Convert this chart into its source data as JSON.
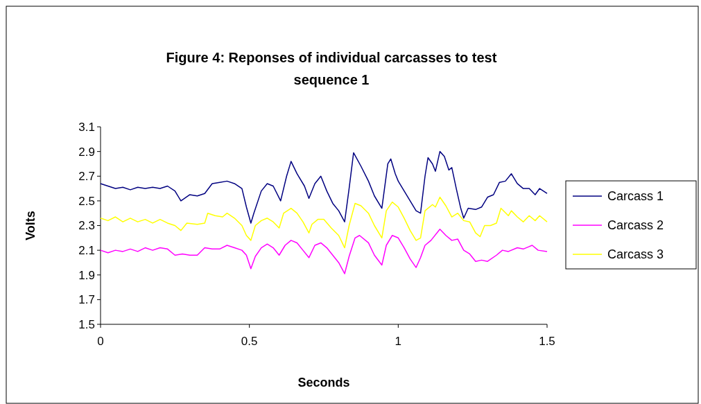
{
  "chart_data": {
    "type": "line",
    "title": "Figure 4: Reponses of individual carcasses to test sequence 1",
    "xlabel": "Seconds",
    "ylabel": "Volts",
    "xlim": [
      0,
      1.5
    ],
    "xticks": [
      0,
      0.5,
      1,
      1.5
    ],
    "ylim": [
      1.5,
      3.1
    ],
    "yticks": [
      1.5,
      1.7,
      1.9,
      2.1,
      2.3,
      2.5,
      2.7,
      2.9,
      3.1
    ],
    "grid": false,
    "legend": "right",
    "marker": "none",
    "line_style": "solid",
    "series": [
      {
        "name": "Carcass 1",
        "color": "#000080",
        "x": [
          0,
          0.025,
          0.05,
          0.075,
          0.1,
          0.125,
          0.15,
          0.175,
          0.2,
          0.225,
          0.25,
          0.27,
          0.3,
          0.325,
          0.35,
          0.375,
          0.4,
          0.425,
          0.45,
          0.475,
          0.49,
          0.505,
          0.515,
          0.54,
          0.56,
          0.58,
          0.605,
          0.625,
          0.64,
          0.66,
          0.685,
          0.7,
          0.72,
          0.74,
          0.76,
          0.78,
          0.8,
          0.82,
          0.835,
          0.85,
          0.875,
          0.9,
          0.92,
          0.945,
          0.965,
          0.975,
          0.99,
          1.0,
          1.02,
          1.04,
          1.06,
          1.075,
          1.09,
          1.1,
          1.115,
          1.125,
          1.14,
          1.155,
          1.17,
          1.18,
          1.195,
          1.21,
          1.22,
          1.235,
          1.26,
          1.28,
          1.3,
          1.32,
          1.34,
          1.36,
          1.38,
          1.4,
          1.42,
          1.44,
          1.46,
          1.475,
          1.5
        ],
        "values": [
          2.64,
          2.62,
          2.6,
          2.61,
          2.59,
          2.61,
          2.6,
          2.61,
          2.6,
          2.62,
          2.58,
          2.5,
          2.55,
          2.54,
          2.56,
          2.64,
          2.65,
          2.66,
          2.64,
          2.6,
          2.45,
          2.32,
          2.4,
          2.58,
          2.64,
          2.62,
          2.5,
          2.7,
          2.82,
          2.72,
          2.62,
          2.52,
          2.64,
          2.7,
          2.58,
          2.48,
          2.42,
          2.33,
          2.6,
          2.89,
          2.78,
          2.66,
          2.54,
          2.44,
          2.8,
          2.84,
          2.72,
          2.66,
          2.58,
          2.5,
          2.42,
          2.4,
          2.7,
          2.85,
          2.8,
          2.74,
          2.9,
          2.86,
          2.75,
          2.77,
          2.6,
          2.44,
          2.36,
          2.44,
          2.43,
          2.45,
          2.53,
          2.55,
          2.65,
          2.66,
          2.72,
          2.64,
          2.6,
          2.6,
          2.55,
          2.6,
          2.56
        ]
      },
      {
        "name": "Carcass 2",
        "color": "#ff00ff",
        "x": [
          0,
          0.025,
          0.05,
          0.075,
          0.1,
          0.125,
          0.15,
          0.175,
          0.2,
          0.225,
          0.25,
          0.275,
          0.3,
          0.325,
          0.35,
          0.375,
          0.4,
          0.425,
          0.45,
          0.475,
          0.49,
          0.505,
          0.52,
          0.54,
          0.56,
          0.58,
          0.6,
          0.62,
          0.64,
          0.66,
          0.68,
          0.7,
          0.72,
          0.74,
          0.76,
          0.78,
          0.8,
          0.82,
          0.835,
          0.855,
          0.87,
          0.9,
          0.92,
          0.945,
          0.96,
          0.98,
          1.0,
          1.02,
          1.04,
          1.06,
          1.075,
          1.09,
          1.11,
          1.14,
          1.16,
          1.18,
          1.2,
          1.22,
          1.24,
          1.26,
          1.28,
          1.3,
          1.33,
          1.35,
          1.37,
          1.4,
          1.42,
          1.45,
          1.47,
          1.5
        ],
        "values": [
          2.1,
          2.08,
          2.1,
          2.09,
          2.11,
          2.09,
          2.12,
          2.1,
          2.12,
          2.11,
          2.06,
          2.07,
          2.06,
          2.06,
          2.12,
          2.11,
          2.11,
          2.14,
          2.12,
          2.1,
          2.06,
          1.95,
          2.05,
          2.12,
          2.15,
          2.12,
          2.06,
          2.14,
          2.18,
          2.16,
          2.1,
          2.04,
          2.14,
          2.16,
          2.12,
          2.06,
          2.0,
          1.91,
          2.05,
          2.2,
          2.22,
          2.16,
          2.06,
          1.98,
          2.14,
          2.22,
          2.2,
          2.12,
          2.03,
          1.96,
          2.04,
          2.14,
          2.18,
          2.27,
          2.22,
          2.18,
          2.19,
          2.1,
          2.07,
          2.01,
          2.02,
          2.01,
          2.06,
          2.1,
          2.09,
          2.12,
          2.11,
          2.14,
          2.1,
          2.09
        ]
      },
      {
        "name": "Carcass 3",
        "color": "#ffff00",
        "x": [
          0,
          0.025,
          0.05,
          0.075,
          0.1,
          0.125,
          0.15,
          0.175,
          0.2,
          0.225,
          0.25,
          0.27,
          0.29,
          0.325,
          0.35,
          0.36,
          0.385,
          0.41,
          0.425,
          0.45,
          0.475,
          0.49,
          0.505,
          0.52,
          0.54,
          0.56,
          0.58,
          0.6,
          0.615,
          0.64,
          0.66,
          0.68,
          0.7,
          0.71,
          0.73,
          0.75,
          0.775,
          0.8,
          0.82,
          0.835,
          0.855,
          0.875,
          0.9,
          0.92,
          0.945,
          0.96,
          0.98,
          1.0,
          1.02,
          1.04,
          1.06,
          1.075,
          1.09,
          1.115,
          1.125,
          1.14,
          1.16,
          1.18,
          1.2,
          1.22,
          1.24,
          1.26,
          1.275,
          1.29,
          1.31,
          1.33,
          1.345,
          1.37,
          1.38,
          1.4,
          1.42,
          1.44,
          1.46,
          1.475,
          1.5
        ],
        "values": [
          2.36,
          2.34,
          2.37,
          2.33,
          2.36,
          2.33,
          2.35,
          2.32,
          2.35,
          2.32,
          2.3,
          2.26,
          2.32,
          2.31,
          2.32,
          2.4,
          2.38,
          2.37,
          2.4,
          2.36,
          2.3,
          2.22,
          2.18,
          2.3,
          2.34,
          2.36,
          2.33,
          2.28,
          2.4,
          2.44,
          2.4,
          2.33,
          2.24,
          2.31,
          2.35,
          2.35,
          2.28,
          2.22,
          2.12,
          2.3,
          2.48,
          2.46,
          2.4,
          2.3,
          2.2,
          2.42,
          2.49,
          2.45,
          2.36,
          2.26,
          2.18,
          2.2,
          2.42,
          2.47,
          2.45,
          2.53,
          2.46,
          2.37,
          2.4,
          2.34,
          2.33,
          2.24,
          2.21,
          2.3,
          2.3,
          2.32,
          2.44,
          2.38,
          2.42,
          2.37,
          2.33,
          2.38,
          2.34,
          2.38,
          2.33
        ]
      }
    ]
  }
}
